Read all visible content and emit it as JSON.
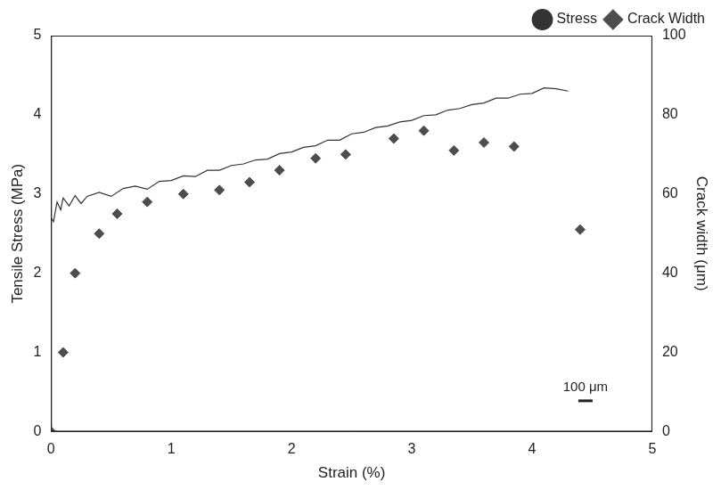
{
  "chart_data": {
    "type": "line",
    "x_label": "Strain (%)",
    "y_label": "Tensile Stress (MPa)",
    "y2_label": "Crack width (μm)",
    "xlim": [
      0,
      5
    ],
    "xticks": [
      0,
      1,
      2,
      3,
      4,
      5
    ],
    "ylim": [
      0,
      5
    ],
    "yticks": [
      0,
      1,
      2,
      3,
      4,
      5
    ],
    "y2lim": [
      0,
      100
    ],
    "y2ticks": [
      0,
      20,
      40,
      60,
      80,
      100
    ],
    "grid": false,
    "legend": "top",
    "annotations": [
      {
        "text": "100 μm"
      }
    ],
    "series": [
      {
        "name": "Stress",
        "type": "line",
        "marker": "none",
        "line_style": "solid",
        "color": "#333333",
        "x": [
          0,
          0.02,
          0.05,
          0.08,
          0.1,
          0.15,
          0.2,
          0.25,
          0.3,
          0.4,
          0.5,
          0.6,
          0.7,
          0.8,
          0.9,
          1.0,
          1.1,
          1.2,
          1.3,
          1.4,
          1.5,
          1.6,
          1.7,
          1.8,
          1.9,
          2.0,
          2.1,
          2.2,
          2.3,
          2.4,
          2.5,
          2.6,
          2.7,
          2.8,
          2.9,
          3.0,
          3.1,
          3.2,
          3.3,
          3.4,
          3.5,
          3.6,
          3.7,
          3.8,
          3.9,
          4.0,
          4.1,
          4.2,
          4.3
        ],
        "values": [
          2.7,
          2.65,
          2.9,
          2.8,
          2.95,
          2.85,
          2.98,
          2.88,
          2.97,
          3.02,
          2.97,
          3.07,
          3.1,
          3.06,
          3.16,
          3.17,
          3.23,
          3.22,
          3.3,
          3.3,
          3.36,
          3.38,
          3.43,
          3.44,
          3.51,
          3.53,
          3.59,
          3.61,
          3.68,
          3.68,
          3.76,
          3.78,
          3.84,
          3.86,
          3.91,
          3.93,
          3.99,
          4.0,
          4.06,
          4.08,
          4.13,
          4.15,
          4.21,
          4.21,
          4.26,
          4.27,
          4.34,
          4.33,
          4.3
        ]
      },
      {
        "name": "Crack Width",
        "type": "scatter",
        "marker": "diamond",
        "color": "#4d4d4d",
        "axis": "y2",
        "x": [
          0,
          0.1,
          0.2,
          0.4,
          0.55,
          0.8,
          1.1,
          1.4,
          1.65,
          1.9,
          2.2,
          2.45,
          2.85,
          3.1,
          3.35,
          3.6,
          3.85,
          4.4
        ],
        "values": [
          0,
          20,
          40,
          50,
          55,
          58,
          60,
          61,
          63,
          66,
          69,
          70,
          74,
          76,
          71,
          73,
          72,
          51
        ]
      }
    ]
  }
}
